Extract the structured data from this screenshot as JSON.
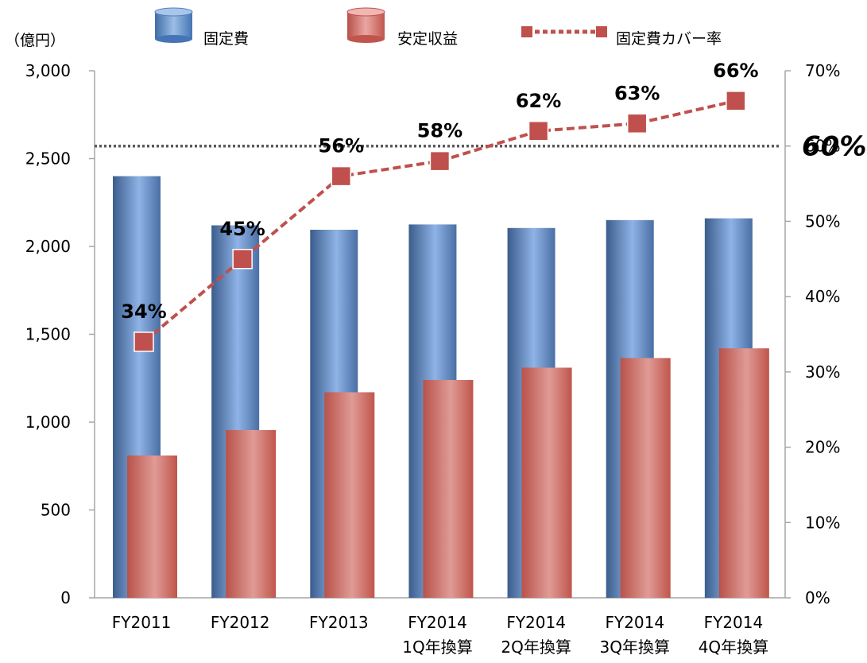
{
  "chart_data": {
    "type": "bar",
    "categories": [
      [
        "FY2011"
      ],
      [
        "FY2012"
      ],
      [
        "FY2013"
      ],
      [
        "FY2014",
        "1Q年換算"
      ],
      [
        "FY2014",
        "2Q年換算"
      ],
      [
        "FY2014",
        "3Q年換算"
      ],
      [
        "FY2014",
        "4Q年換算"
      ]
    ],
    "y_left": {
      "unit_label": "（億円）",
      "ylim": [
        0,
        3000
      ],
      "ticks": [
        "0",
        "500",
        "1,000",
        "1,500",
        "2,000",
        "2,500",
        "3,000"
      ],
      "tick_values": [
        0,
        500,
        1000,
        1500,
        2000,
        2500,
        3000
      ]
    },
    "y_right": {
      "ylim": [
        0,
        70
      ],
      "ticks": [
        "0%",
        "10%",
        "20%",
        "30%",
        "40%",
        "50%",
        "60%",
        "70%"
      ],
      "tick_values": [
        0,
        10,
        20,
        30,
        40,
        50,
        60,
        70
      ]
    },
    "series": [
      {
        "name": "固定費",
        "kind": "bar",
        "axis": "left",
        "color": "#4f81bd",
        "values": [
          2400,
          2120,
          2095,
          2125,
          2105,
          2150,
          2160
        ]
      },
      {
        "name": "安定収益",
        "kind": "bar",
        "axis": "left",
        "color": "#c0504d",
        "values": [
          810,
          955,
          1170,
          1240,
          1310,
          1365,
          1420
        ]
      },
      {
        "name": "固定費カバー率",
        "kind": "line",
        "axis": "right",
        "color": "#c0504d",
        "values": [
          34,
          45,
          56,
          58,
          62,
          63,
          66
        ],
        "labels": [
          "34%",
          "45%",
          "56%",
          "58%",
          "62%",
          "63%",
          "66%"
        ]
      }
    ],
    "reference_line": {
      "value": 60,
      "axis": "right",
      "label": "60%",
      "color": "#595959"
    },
    "legend_position": "top",
    "grid": false
  }
}
